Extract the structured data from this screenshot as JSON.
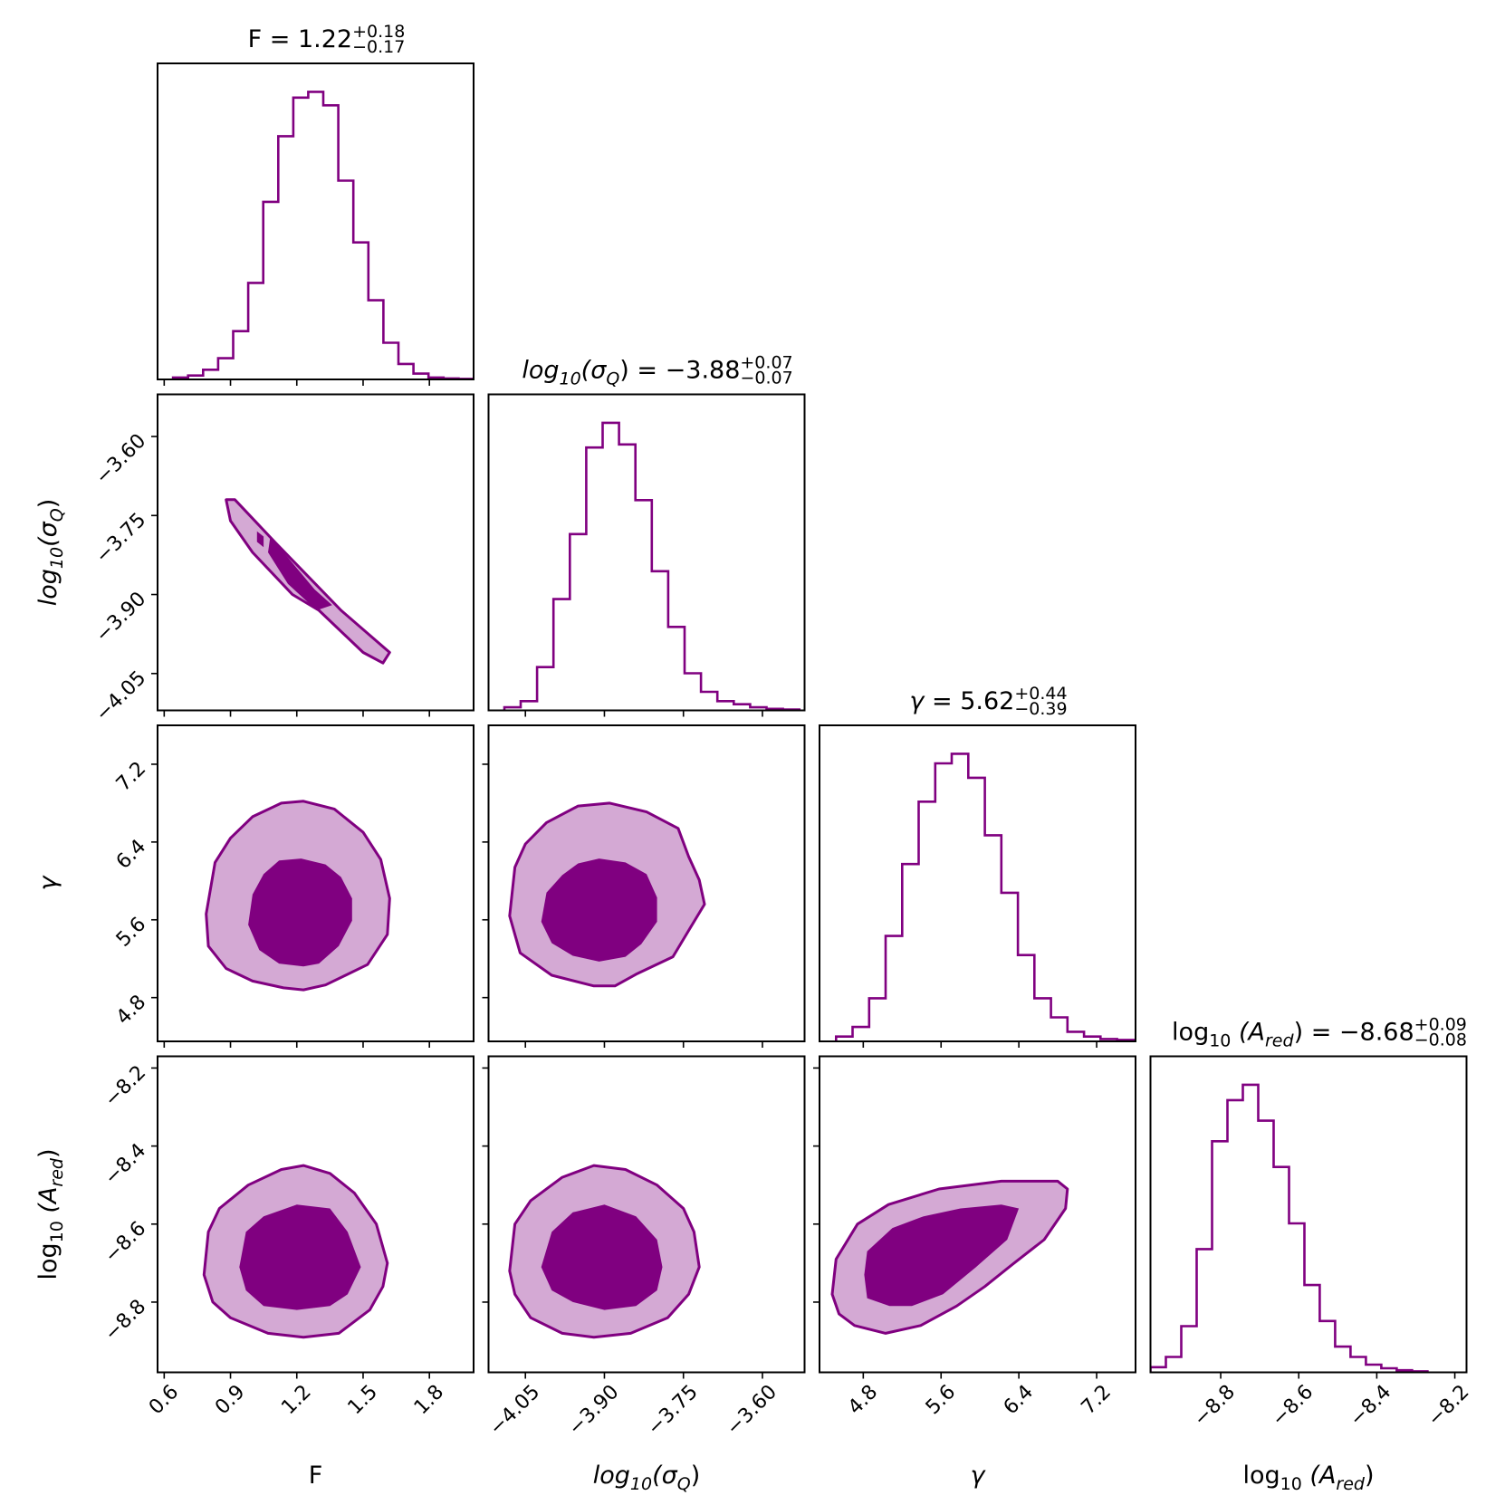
{
  "chart_data": {
    "type": "corner",
    "colors": {
      "line": "#800080",
      "outer_fill": "#d4a9d4",
      "inner_fill": "#800080"
    },
    "params": [
      {
        "key": "F",
        "label": "F",
        "range": [
          0.57,
          2.0
        ],
        "ticks": [
          "0.6",
          "0.9",
          "1.2",
          "1.5",
          "1.8"
        ],
        "median": 1.22,
        "title": {
          "name": "F",
          "value": "1.22",
          "plus": "+0.18",
          "minus": "−0.17"
        },
        "hist": {
          "edges": [
            0.64,
            2.0
          ],
          "counts": [
            1,
            2,
            5,
            11,
            25,
            50,
            92,
            126,
            146,
            149,
            142,
            103,
            71,
            41,
            19,
            8,
            3,
            1,
            0.5,
            0.3
          ]
        }
      },
      {
        "key": "sigma",
        "label": "log10(σQ)",
        "range": [
          -4.12,
          -3.52
        ],
        "ticks": [
          "−4.05",
          "−3.90",
          "−3.75",
          "−3.60"
        ],
        "median": -3.88,
        "title": {
          "name": "log10(σQ)",
          "value": "−3.88",
          "plus": "+0.07",
          "minus": "−0.07"
        },
        "hist": {
          "edges": [
            -4.09,
            -3.53
          ],
          "counts": [
            1,
            3,
            14,
            36,
            57,
            85,
            93,
            86,
            68,
            45,
            27,
            12,
            6,
            3,
            2,
            1,
            0.5,
            0.3
          ]
        }
      },
      {
        "key": "gamma",
        "label": "γ",
        "range": [
          4.35,
          7.6
        ],
        "ticks": [
          "4.8",
          "5.6",
          "6.4",
          "7.2"
        ],
        "median": 5.62,
        "title": {
          "name": "γ",
          "value": "5.62",
          "plus": "+0.44",
          "minus": "−0.39"
        },
        "hist": {
          "edges": [
            4.52,
            7.58
          ],
          "counts": [
            1,
            3,
            9,
            22,
            37,
            50,
            58,
            60,
            55,
            43,
            31,
            18,
            9,
            5,
            2,
            1,
            0.5,
            0.3
          ]
        }
      },
      {
        "key": "ared",
        "label": "log10(Ared)",
        "range": [
          -8.98,
          -8.17
        ],
        "ticks": [
          "−8.8",
          "−8.6",
          "−8.4",
          "−8.2"
        ],
        "median": -8.68,
        "title": {
          "name": "log10(Ared)",
          "value": "−8.68",
          "plus": "+0.09",
          "minus": "−0.08"
        },
        "hist": {
          "edges": [
            -8.98,
            -8.27
          ],
          "counts": [
            1,
            3,
            9,
            24,
            45,
            53,
            56,
            49,
            40,
            29,
            17,
            10,
            5,
            3,
            1.5,
            0.8,
            0.4,
            0.2
          ]
        }
      }
    ],
    "pairs": [
      {
        "x": "F",
        "y": "sigma",
        "outer": [
          [
            0.88,
            -3.72
          ],
          [
            0.92,
            -3.72
          ],
          [
            1.1,
            -3.8
          ],
          [
            1.4,
            -3.93
          ],
          [
            1.62,
            -4.01
          ],
          [
            1.59,
            -4.03
          ],
          [
            1.5,
            -4.01
          ],
          [
            1.3,
            -3.93
          ],
          [
            1.18,
            -3.9
          ],
          [
            1.0,
            -3.82
          ],
          [
            0.9,
            -3.76
          ]
        ],
        "inner": [
          [
            1.08,
            -3.79
          ],
          [
            1.16,
            -3.83
          ],
          [
            1.28,
            -3.89
          ],
          [
            1.36,
            -3.92
          ],
          [
            1.29,
            -3.93
          ],
          [
            1.16,
            -3.88
          ],
          [
            1.07,
            -3.82
          ]
        ],
        "inner_extra": [
          [
            1.02,
            -3.78
          ],
          [
            1.05,
            -3.79
          ],
          [
            1.05,
            -3.81
          ],
          [
            1.02,
            -3.8
          ]
        ]
      },
      {
        "x": "F",
        "y": "gamma",
        "outer": [
          [
            0.79,
            5.66
          ],
          [
            0.83,
            6.19
          ],
          [
            0.9,
            6.44
          ],
          [
            1.0,
            6.66
          ],
          [
            1.13,
            6.8
          ],
          [
            1.23,
            6.82
          ],
          [
            1.37,
            6.74
          ],
          [
            1.5,
            6.5
          ],
          [
            1.58,
            6.22
          ],
          [
            1.62,
            5.82
          ],
          [
            1.61,
            5.45
          ],
          [
            1.52,
            5.14
          ],
          [
            1.33,
            4.93
          ],
          [
            1.23,
            4.88
          ],
          [
            1.14,
            4.9
          ],
          [
            1.0,
            4.97
          ],
          [
            0.88,
            5.1
          ],
          [
            0.8,
            5.33
          ]
        ],
        "inner": [
          [
            0.98,
            5.55
          ],
          [
            1.0,
            5.86
          ],
          [
            1.05,
            6.07
          ],
          [
            1.12,
            6.21
          ],
          [
            1.22,
            6.23
          ],
          [
            1.33,
            6.17
          ],
          [
            1.4,
            6.04
          ],
          [
            1.45,
            5.82
          ],
          [
            1.45,
            5.59
          ],
          [
            1.39,
            5.33
          ],
          [
            1.3,
            5.15
          ],
          [
            1.23,
            5.12
          ],
          [
            1.12,
            5.15
          ],
          [
            1.03,
            5.29
          ]
        ]
      },
      {
        "x": "sigma",
        "y": "gamma",
        "outer": [
          [
            -4.08,
            5.64
          ],
          [
            -4.07,
            6.14
          ],
          [
            -4.05,
            6.38
          ],
          [
            -4.01,
            6.6
          ],
          [
            -3.95,
            6.77
          ],
          [
            -3.89,
            6.8
          ],
          [
            -3.82,
            6.71
          ],
          [
            -3.76,
            6.54
          ],
          [
            -3.74,
            6.25
          ],
          [
            -3.72,
            6.01
          ],
          [
            -3.71,
            5.76
          ],
          [
            -3.74,
            5.49
          ],
          [
            -3.77,
            5.22
          ],
          [
            -3.84,
            5.04
          ],
          [
            -3.88,
            4.92
          ],
          [
            -3.92,
            4.92
          ],
          [
            -4.0,
            5.03
          ],
          [
            -4.06,
            5.26
          ]
        ],
        "inner": [
          [
            -4.02,
            5.58
          ],
          [
            -4.01,
            5.88
          ],
          [
            -3.98,
            6.06
          ],
          [
            -3.95,
            6.18
          ],
          [
            -3.91,
            6.23
          ],
          [
            -3.86,
            6.19
          ],
          [
            -3.82,
            6.07
          ],
          [
            -3.8,
            5.83
          ],
          [
            -3.8,
            5.58
          ],
          [
            -3.83,
            5.35
          ],
          [
            -3.86,
            5.22
          ],
          [
            -3.91,
            5.17
          ],
          [
            -3.96,
            5.23
          ],
          [
            -4.0,
            5.36
          ]
        ]
      },
      {
        "x": "F",
        "y": "ared",
        "outer": [
          [
            0.78,
            -8.73
          ],
          [
            0.8,
            -8.62
          ],
          [
            0.85,
            -8.56
          ],
          [
            0.98,
            -8.5
          ],
          [
            1.13,
            -8.46
          ],
          [
            1.23,
            -8.45
          ],
          [
            1.35,
            -8.47
          ],
          [
            1.46,
            -8.52
          ],
          [
            1.56,
            -8.6
          ],
          [
            1.61,
            -8.7
          ],
          [
            1.59,
            -8.76
          ],
          [
            1.53,
            -8.82
          ],
          [
            1.39,
            -8.88
          ],
          [
            1.23,
            -8.89
          ],
          [
            1.07,
            -8.88
          ],
          [
            0.9,
            -8.84
          ],
          [
            0.82,
            -8.8
          ]
        ],
        "inner": [
          [
            0.94,
            -8.71
          ],
          [
            0.97,
            -8.62
          ],
          [
            1.05,
            -8.58
          ],
          [
            1.2,
            -8.55
          ],
          [
            1.35,
            -8.56
          ],
          [
            1.43,
            -8.62
          ],
          [
            1.49,
            -8.71
          ],
          [
            1.43,
            -8.78
          ],
          [
            1.35,
            -8.81
          ],
          [
            1.2,
            -8.82
          ],
          [
            1.05,
            -8.81
          ],
          [
            0.97,
            -8.77
          ]
        ]
      },
      {
        "x": "sigma",
        "y": "ared",
        "outer": [
          [
            -4.08,
            -8.72
          ],
          [
            -4.07,
            -8.6
          ],
          [
            -4.04,
            -8.54
          ],
          [
            -3.98,
            -8.48
          ],
          [
            -3.92,
            -8.45
          ],
          [
            -3.86,
            -8.46
          ],
          [
            -3.8,
            -8.5
          ],
          [
            -3.75,
            -8.56
          ],
          [
            -3.73,
            -8.62
          ],
          [
            -3.72,
            -8.71
          ],
          [
            -3.74,
            -8.78
          ],
          [
            -3.78,
            -8.84
          ],
          [
            -3.85,
            -8.88
          ],
          [
            -3.92,
            -8.89
          ],
          [
            -3.98,
            -8.88
          ],
          [
            -4.04,
            -8.84
          ],
          [
            -4.07,
            -8.78
          ]
        ],
        "inner": [
          [
            -4.02,
            -8.71
          ],
          [
            -4.0,
            -8.62
          ],
          [
            -3.96,
            -8.57
          ],
          [
            -3.9,
            -8.55
          ],
          [
            -3.84,
            -8.58
          ],
          [
            -3.8,
            -8.64
          ],
          [
            -3.79,
            -8.71
          ],
          [
            -3.8,
            -8.77
          ],
          [
            -3.84,
            -8.81
          ],
          [
            -3.9,
            -8.82
          ],
          [
            -3.96,
            -8.8
          ],
          [
            -4.0,
            -8.77
          ]
        ]
      },
      {
        "x": "gamma",
        "y": "ared",
        "outer": [
          [
            4.48,
            -8.78
          ],
          [
            4.52,
            -8.69
          ],
          [
            4.74,
            -8.6
          ],
          [
            5.06,
            -8.55
          ],
          [
            5.58,
            -8.51
          ],
          [
            6.22,
            -8.49
          ],
          [
            6.68,
            -8.49
          ],
          [
            6.8,
            -8.49
          ],
          [
            6.9,
            -8.51
          ],
          [
            6.88,
            -8.56
          ],
          [
            6.66,
            -8.64
          ],
          [
            6.35,
            -8.7
          ],
          [
            6.05,
            -8.76
          ],
          [
            5.76,
            -8.81
          ],
          [
            5.39,
            -8.86
          ],
          [
            5.03,
            -8.88
          ],
          [
            4.71,
            -8.86
          ],
          [
            4.55,
            -8.83
          ]
        ],
        "inner": [
          [
            4.81,
            -8.73
          ],
          [
            4.84,
            -8.67
          ],
          [
            5.1,
            -8.61
          ],
          [
            5.42,
            -8.58
          ],
          [
            5.8,
            -8.56
          ],
          [
            6.22,
            -8.55
          ],
          [
            6.4,
            -8.56
          ],
          [
            6.28,
            -8.64
          ],
          [
            5.96,
            -8.71
          ],
          [
            5.62,
            -8.78
          ],
          [
            5.3,
            -8.81
          ],
          [
            5.07,
            -8.81
          ],
          [
            4.84,
            -8.79
          ]
        ]
      }
    ]
  }
}
